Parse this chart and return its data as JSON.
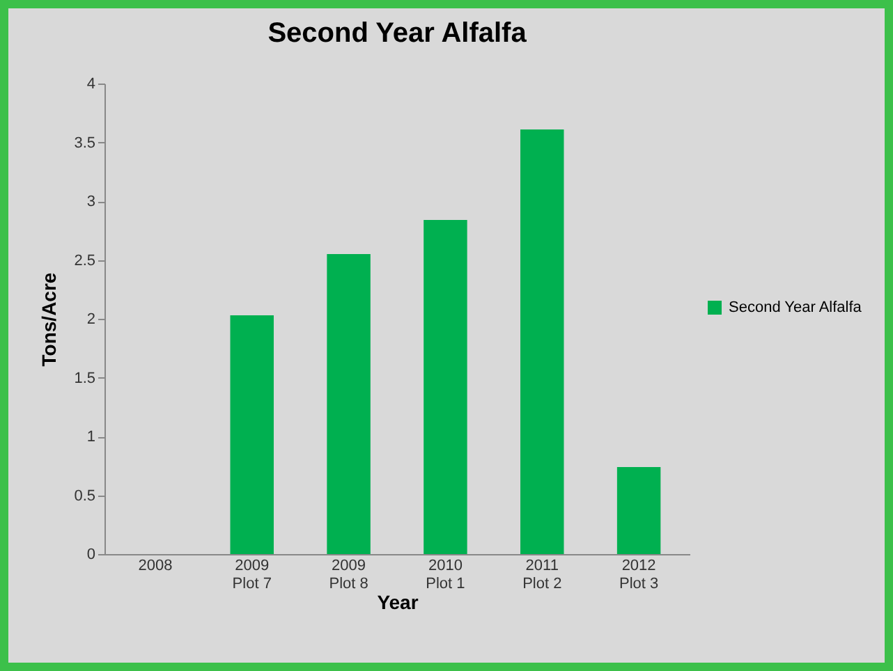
{
  "chart_data": {
    "type": "bar",
    "title": "Second Year Alfalfa",
    "xlabel": "Year",
    "ylabel": "Tons/Acre",
    "categories": [
      "2008",
      "2009\nPlot 7",
      "2009\nPlot 8",
      "2010\nPlot 1",
      "2011\nPlot 2",
      "2012\nPlot 3"
    ],
    "series": [
      {
        "name": "Second Year Alfalfa",
        "color": "#00b050",
        "values": [
          null,
          2.03,
          2.55,
          2.84,
          3.61,
          0.74
        ]
      }
    ],
    "ylim": [
      0,
      4
    ],
    "yticks": [
      0,
      0.5,
      1,
      1.5,
      2,
      2.5,
      3,
      3.5,
      4
    ],
    "grid": false,
    "legend": "right"
  }
}
